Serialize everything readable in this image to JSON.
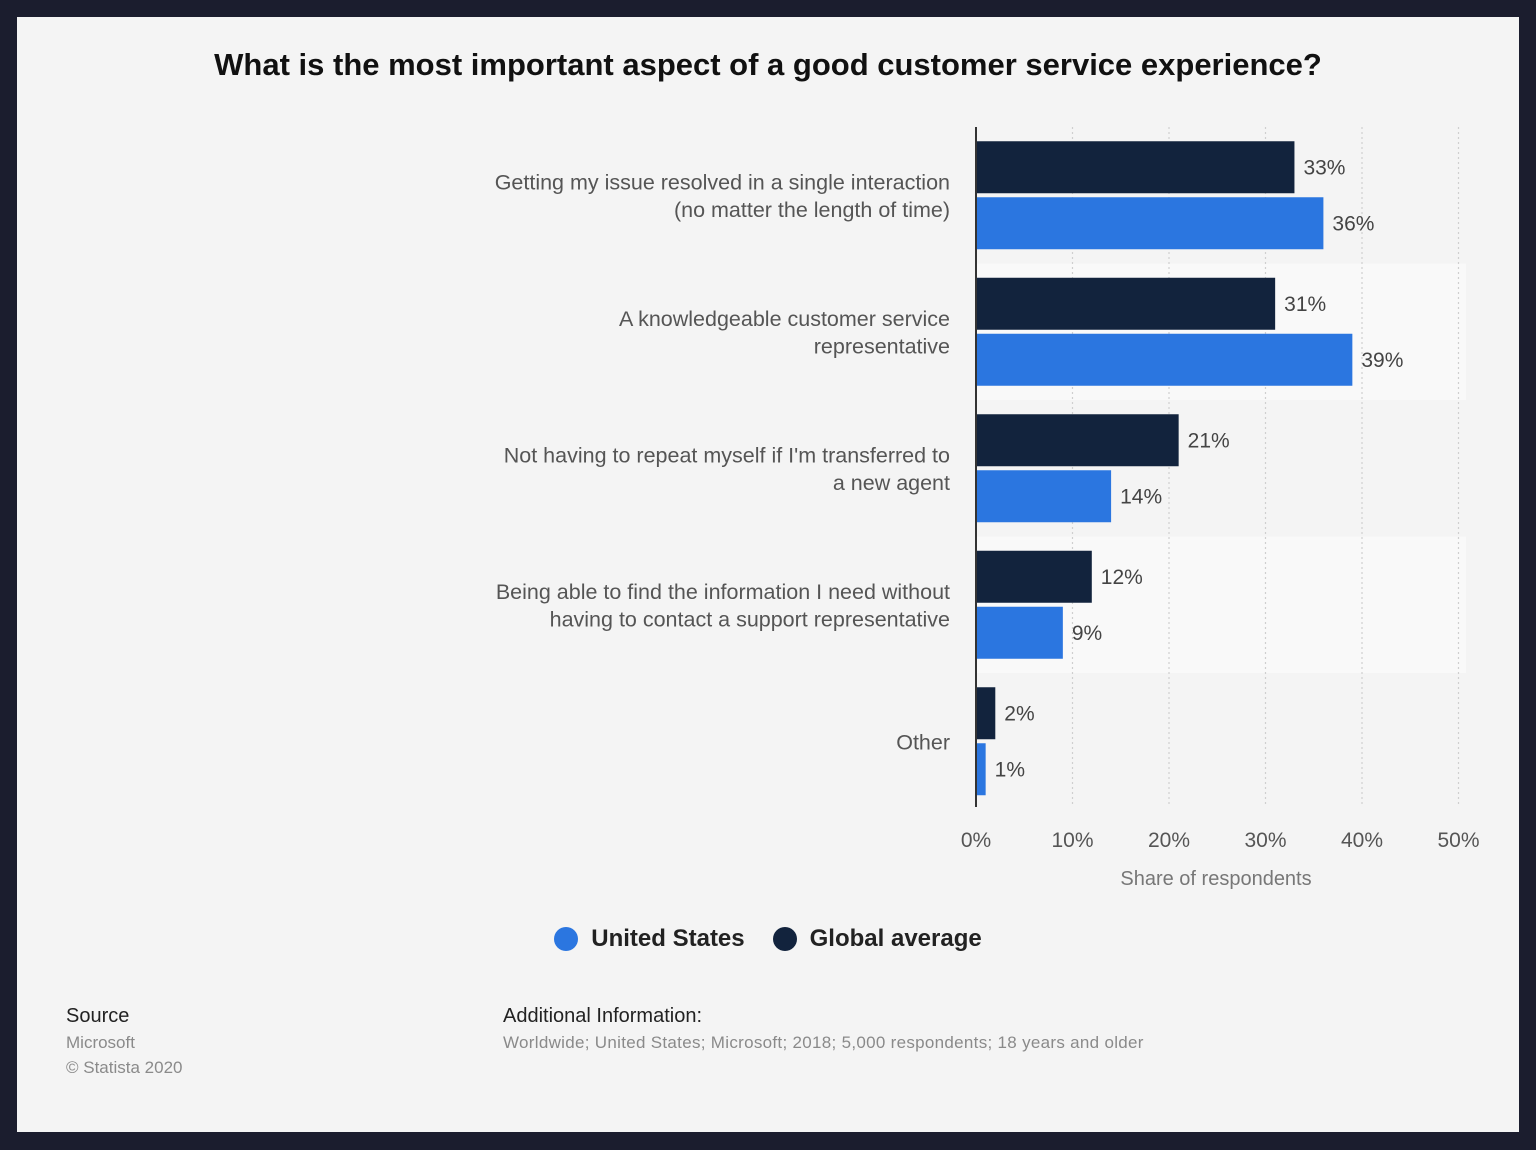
{
  "chart_data": {
    "type": "bar",
    "orientation": "horizontal",
    "title": "What is the most important aspect of a good customer service experience?",
    "categories": [
      [
        "Getting my issue resolved in a single interaction",
        "(no matter the length of time)"
      ],
      [
        "A knowledgeable customer service",
        "representative"
      ],
      [
        "Not having to repeat myself if I'm transferred to",
        "a new agent"
      ],
      [
        "Being able to find the information I need without",
        "having to contact a support representative"
      ],
      [
        "Other"
      ]
    ],
    "series": [
      {
        "name": "Global average",
        "color": "#12233d",
        "values": [
          33,
          31,
          21,
          12,
          2
        ],
        "labels": [
          "33%",
          "31%",
          "21%",
          "12%",
          "2%"
        ]
      },
      {
        "name": "United States",
        "color": "#2b76e0",
        "values": [
          36,
          39,
          14,
          9,
          1
        ],
        "labels": [
          "36%",
          "39%",
          "14%",
          "9%",
          "1%"
        ]
      }
    ],
    "xlabel": "Share of respondents",
    "xlim": [
      0,
      50
    ],
    "xticks": [
      0,
      10,
      20,
      30,
      40,
      50
    ],
    "xtick_labels": [
      "0%",
      "10%",
      "20%",
      "30%",
      "40%",
      "50%"
    ],
    "grid": true,
    "legend_position": "bottom"
  },
  "legend": {
    "items": [
      {
        "label": "United States",
        "color": "#2b76e0"
      },
      {
        "label": "Global average",
        "color": "#12233d"
      }
    ]
  },
  "footer": {
    "source_heading": "Source",
    "source_name": "Microsoft",
    "copyright": "© Statista 2020",
    "additional_heading": "Additional Information:",
    "additional_text": "Worldwide; United States; Microsoft; 2018; 5,000 respondents; 18 years and older"
  }
}
